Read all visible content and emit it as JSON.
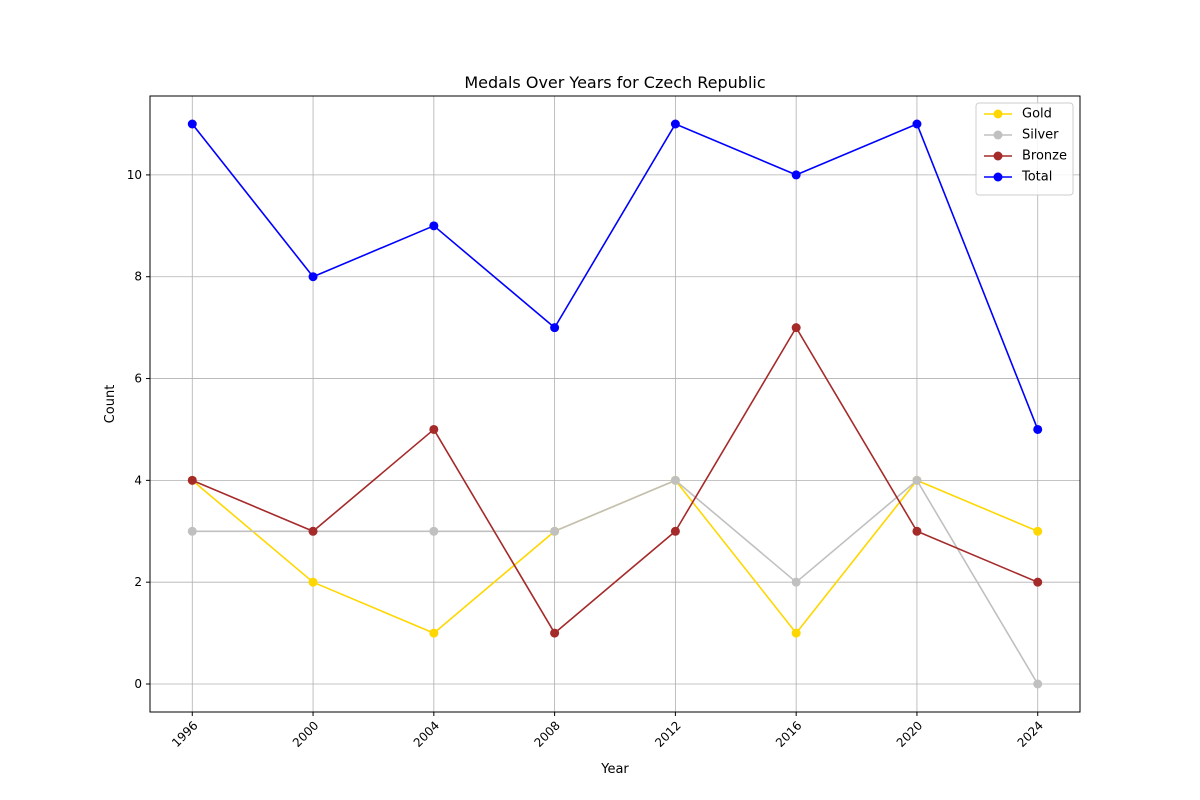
{
  "chart_data": {
    "type": "line",
    "title": "Medals Over Years for Czech Republic",
    "xlabel": "Year",
    "ylabel": "Count",
    "x": [
      1996,
      2000,
      2004,
      2008,
      2012,
      2016,
      2020,
      2024
    ],
    "x_tick_labels": [
      "1996",
      "2000",
      "2004",
      "2008",
      "2012",
      "2016",
      "2020",
      "2024"
    ],
    "y_ticks": [
      0,
      2,
      4,
      6,
      8,
      10
    ],
    "ylim": [
      -0.55,
      11.55
    ],
    "grid": true,
    "legend_position": "top-right",
    "series": [
      {
        "name": "Gold",
        "color": "#ffd700",
        "values": [
          4,
          2,
          1,
          3,
          4,
          1,
          4,
          3
        ]
      },
      {
        "name": "Silver",
        "color": "#c0c0c0",
        "values": [
          3,
          3,
          3,
          3,
          4,
          2,
          4,
          0
        ]
      },
      {
        "name": "Bronze",
        "color": "#a52a2a",
        "values": [
          4,
          3,
          5,
          1,
          3,
          7,
          3,
          2
        ]
      },
      {
        "name": "Total",
        "color": "#0000ff",
        "values": [
          11,
          8,
          9,
          7,
          11,
          10,
          11,
          5
        ]
      }
    ]
  }
}
